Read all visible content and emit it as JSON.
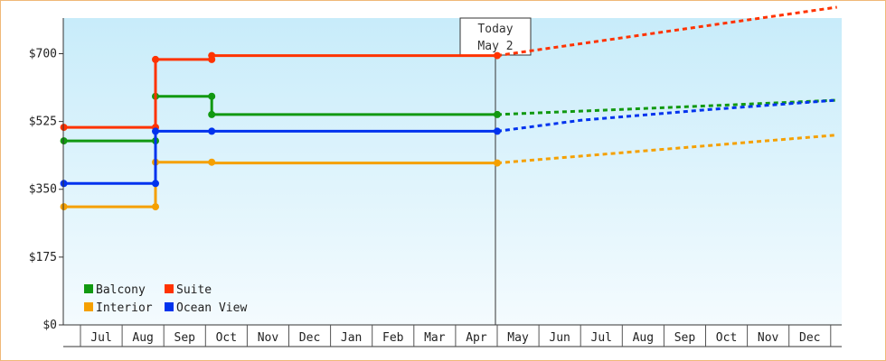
{
  "chart_data": {
    "type": "line",
    "title": "",
    "xlabel": "",
    "ylabel": "",
    "ylim": [
      0,
      792
    ],
    "y_ticks": [
      {
        "value": 0,
        "label": "$0"
      },
      {
        "value": 175,
        "label": "$175"
      },
      {
        "value": 350,
        "label": "$350"
      },
      {
        "value": 525,
        "label": "$525"
      },
      {
        "value": 700,
        "label": "$700"
      }
    ],
    "x_months": [
      "Jul",
      "Aug",
      "Sep",
      "Oct",
      "Nov",
      "Dec",
      "Jan",
      "Feb",
      "Mar",
      "Apr",
      "May",
      "Jun",
      "Jul",
      "Aug",
      "Sep",
      "Oct",
      "Nov",
      "Dec"
    ],
    "xlim": [
      -0.4,
      18.15
    ],
    "today": {
      "x": 10.0,
      "label_line1": "Today",
      "label_line2": "May 2"
    },
    "grid": false,
    "legend_position": "bottom-left",
    "series": [
      {
        "name": "Balcony",
        "color": "#119911",
        "history": [
          [
            -0.4,
            475
          ],
          [
            1.8,
            475
          ],
          [
            1.8,
            590
          ],
          [
            3.15,
            590
          ],
          [
            3.15,
            543
          ],
          [
            10.0,
            543
          ]
        ],
        "markers": [
          [
            -0.4,
            475
          ],
          [
            1.8,
            475
          ],
          [
            1.8,
            590
          ],
          [
            3.15,
            590
          ],
          [
            3.15,
            543
          ],
          [
            10.0,
            543
          ]
        ],
        "forecast": [
          [
            10.0,
            543
          ],
          [
            15.0,
            565
          ],
          [
            18.15,
            580
          ]
        ]
      },
      {
        "name": "Suite",
        "color": "#ff3300",
        "history": [
          [
            -0.4,
            510
          ],
          [
            1.8,
            510
          ],
          [
            1.8,
            685
          ],
          [
            3.15,
            685
          ],
          [
            3.15,
            695
          ],
          [
            10.0,
            695
          ]
        ],
        "markers": [
          [
            -0.4,
            510
          ],
          [
            1.8,
            510
          ],
          [
            1.8,
            685
          ],
          [
            3.15,
            685
          ],
          [
            3.15,
            695
          ],
          [
            10.0,
            695
          ]
        ],
        "forecast": [
          [
            10.0,
            695
          ],
          [
            18.15,
            820
          ]
        ]
      },
      {
        "name": "Interior",
        "color": "#f5a000",
        "history": [
          [
            -0.4,
            305
          ],
          [
            1.8,
            305
          ],
          [
            1.8,
            420
          ],
          [
            3.15,
            420
          ],
          [
            3.15,
            418
          ],
          [
            10.0,
            418
          ]
        ],
        "markers": [
          [
            -0.4,
            305
          ],
          [
            1.8,
            305
          ],
          [
            1.8,
            420
          ],
          [
            3.15,
            420
          ],
          [
            10.0,
            418
          ]
        ],
        "forecast": [
          [
            10.0,
            418
          ],
          [
            18.15,
            490
          ]
        ]
      },
      {
        "name": "Ocean View",
        "color": "#0033ee",
        "history": [
          [
            -0.4,
            365
          ],
          [
            1.8,
            365
          ],
          [
            1.8,
            500
          ],
          [
            3.15,
            500
          ],
          [
            10.0,
            500
          ]
        ],
        "markers": [
          [
            -0.4,
            365
          ],
          [
            1.8,
            365
          ],
          [
            1.8,
            500
          ],
          [
            3.15,
            500
          ],
          [
            10.0,
            500
          ]
        ],
        "forecast": [
          [
            10.0,
            500
          ],
          [
            12.0,
            528
          ],
          [
            15.0,
            555
          ],
          [
            18.15,
            580
          ]
        ]
      }
    ],
    "legend_rows": [
      [
        "Balcony",
        "Suite"
      ],
      [
        "Interior",
        "Ocean View"
      ]
    ]
  }
}
